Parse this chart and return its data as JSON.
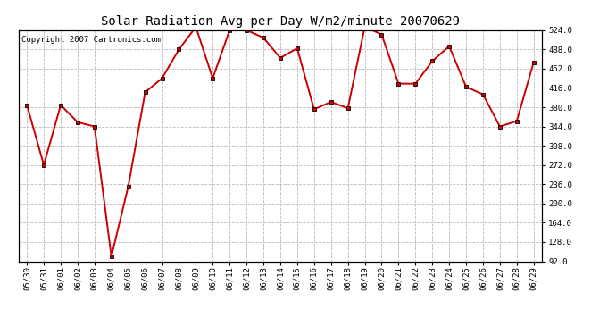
{
  "title": "Solar Radiation Avg per Day W/m2/minute 20070629",
  "copyright": "Copyright 2007 Cartronics.com",
  "data_labels": [
    "05/30",
    "05/31",
    "06/01",
    "06/02",
    "06/03",
    "06/04",
    "06/05",
    "06/06",
    "06/07",
    "06/08",
    "06/09",
    "06/10",
    "06/11",
    "06/12",
    "06/13",
    "06/14",
    "06/15",
    "06/16",
    "06/17",
    "06/18",
    "06/19",
    "06/20",
    "06/21",
    "06/22",
    "06/23",
    "06/24",
    "06/25",
    "06/26",
    "06/27",
    "06/28",
    "06/29"
  ],
  "data_values": [
    384,
    272,
    384,
    352,
    344,
    101,
    232,
    408,
    434,
    488,
    530,
    434,
    524,
    524,
    510,
    472,
    490,
    376,
    390,
    378,
    530,
    516,
    424,
    424,
    466,
    494,
    418,
    404,
    344,
    354,
    464
  ],
  "line_color": "#cc0000",
  "marker_color": "#cc0000",
  "marker_edge_color": "#000000",
  "bg_color": "#ffffff",
  "plot_bg_color": "#ffffff",
  "grid_color": "#bbbbbb",
  "title_fontsize": 10,
  "copyright_fontsize": 6.5,
  "tick_fontsize": 6.5,
  "ylim_min": 92.0,
  "ylim_max": 524.0,
  "yticks": [
    92.0,
    128.0,
    164.0,
    200.0,
    236.0,
    272.0,
    308.0,
    344.0,
    380.0,
    416.0,
    452.0,
    488.0,
    524.0
  ]
}
